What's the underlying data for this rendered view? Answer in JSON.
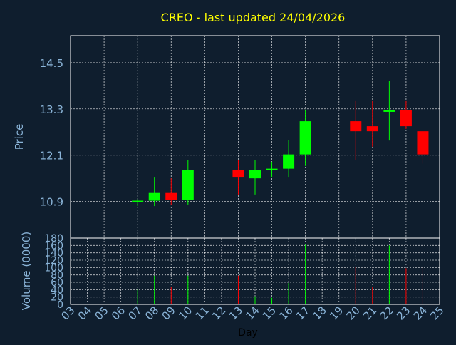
{
  "colors": {
    "background": "#0f1e2e",
    "grid": "#ffffff",
    "up": "#00ff00",
    "down": "#ff0000",
    "title": "#ffff00",
    "axis_text": "#8ab4d8",
    "xlabel_text": "#000000"
  },
  "chart_data": [
    {
      "type": "candlestick",
      "title": "CREO - last updated 24/04/2026",
      "ylabel": "Price",
      "ylim": [
        9.95,
        15.2
      ],
      "yticks": [
        10.9,
        12.1,
        13.3,
        14.5
      ],
      "yticklabels": [
        "10.9",
        "12.1",
        "13.3",
        "14.5"
      ],
      "grid": true,
      "x": [
        "03",
        "04",
        "05",
        "06",
        "07",
        "08",
        "09",
        "10",
        "11",
        "12",
        "13",
        "14",
        "15",
        "16",
        "17",
        "18",
        "19",
        "20",
        "21",
        "22",
        "23",
        "24",
        "25"
      ],
      "candles": [
        {
          "day": "07",
          "open": 10.88,
          "high": 10.96,
          "low": 10.78,
          "close": 10.92
        },
        {
          "day": "08",
          "open": 10.92,
          "high": 11.52,
          "low": 10.78,
          "close": 11.12
        },
        {
          "day": "09",
          "open": 11.12,
          "high": 11.5,
          "low": 10.82,
          "close": 10.93
        },
        {
          "day": "10",
          "open": 10.93,
          "high": 11.98,
          "low": 10.82,
          "close": 11.72
        },
        {
          "day": "13",
          "open": 11.72,
          "high": 11.98,
          "low": 11.08,
          "close": 11.52
        },
        {
          "day": "14",
          "open": 11.5,
          "high": 11.98,
          "low": 11.08,
          "close": 11.72
        },
        {
          "day": "15",
          "open": 11.72,
          "high": 11.93,
          "low": 11.52,
          "close": 11.75
        },
        {
          "day": "16",
          "open": 11.75,
          "high": 12.5,
          "low": 11.52,
          "close": 12.12
        },
        {
          "day": "17",
          "open": 12.12,
          "high": 13.28,
          "low": 11.82,
          "close": 12.98
        },
        {
          "day": "20",
          "open": 12.98,
          "high": 13.52,
          "low": 11.98,
          "close": 12.72
        },
        {
          "day": "21",
          "open": 12.85,
          "high": 13.52,
          "low": 12.32,
          "close": 12.72
        },
        {
          "day": "22",
          "open": 13.23,
          "high": 14.02,
          "low": 12.48,
          "close": 13.26
        },
        {
          "day": "23",
          "open": 13.26,
          "high": 13.52,
          "low": 12.78,
          "close": 12.85
        },
        {
          "day": "24",
          "open": 12.72,
          "high": 12.72,
          "low": 11.88,
          "close": 12.12
        }
      ]
    },
    {
      "type": "bar",
      "ylabel": "Volume (0000)",
      "xlabel": "Day",
      "ylim": [
        0,
        180
      ],
      "yticks": [
        0,
        20,
        40,
        60,
        80,
        100,
        120,
        140,
        160,
        180
      ],
      "yticklabels": [
        "0",
        "20",
        "40",
        "60",
        "80",
        "100",
        "120",
        "140",
        "160",
        "180"
      ],
      "grid": true,
      "categories": [
        "07",
        "08",
        "09",
        "10",
        "13",
        "14",
        "15",
        "16",
        "17",
        "20",
        "21",
        "22",
        "23",
        "24"
      ],
      "values": [
        40,
        78,
        48,
        78,
        78,
        22,
        18,
        58,
        162,
        102,
        48,
        160,
        98,
        100
      ],
      "colors": [
        "up",
        "up",
        "down",
        "up",
        "down",
        "up",
        "up",
        "up",
        "up",
        "down",
        "down",
        "up",
        "down",
        "down"
      ]
    }
  ]
}
